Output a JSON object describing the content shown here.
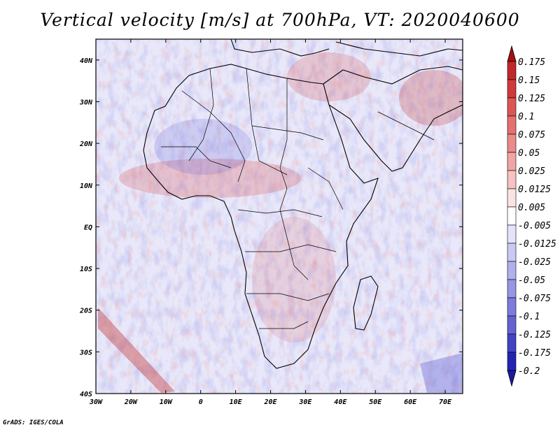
{
  "title": "Vertical velocity [m/s] at 700hPa, VT: 2020040600",
  "footer": "GrADS: IGES/COLA",
  "map": {
    "lon_ticks": [
      "30W",
      "20W",
      "10W",
      "0",
      "10E",
      "20E",
      "30E",
      "40E",
      "50E",
      "60E",
      "70E"
    ],
    "lat_ticks": [
      "40N",
      "30N",
      "20N",
      "10N",
      "EQ",
      "10S",
      "20S",
      "30S",
      "40S"
    ],
    "lon_range": [
      -30,
      75
    ],
    "lat_range": [
      -40,
      45
    ]
  },
  "colorbar": {
    "labels": [
      "0.175",
      "0.15",
      "0.125",
      "0.1",
      "0.075",
      "0.05",
      "0.025",
      "0.0125",
      "0.005",
      "-0.005",
      "-0.0125",
      "-0.025",
      "-0.05",
      "-0.075",
      "-0.1",
      "-0.125",
      "-0.175",
      "-0.2"
    ],
    "colors": [
      "#a50f15",
      "#c0282c",
      "#d03a3a",
      "#dd5555",
      "#e57070",
      "#eb8a8a",
      "#f1a5a5",
      "#f6c2c2",
      "#fbe3e3",
      "#ffffff",
      "#e3e3fb",
      "#c9c9f3",
      "#b0b0ec",
      "#9696e4",
      "#7c7cdb",
      "#6262d2",
      "#4343c4",
      "#2424b4",
      "#1a1aa0"
    ]
  }
}
